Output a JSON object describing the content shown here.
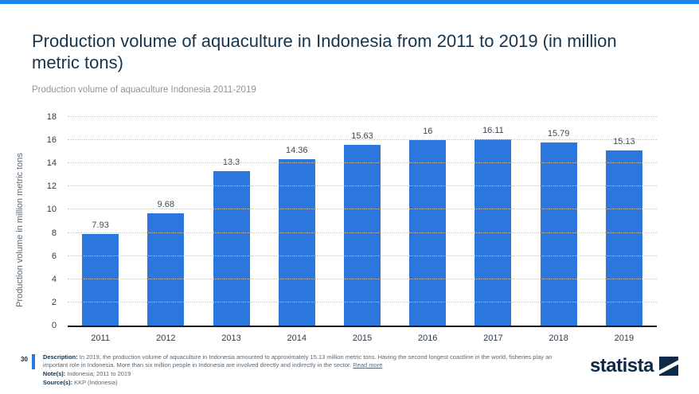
{
  "colors": {
    "accent_top": "#1e84e8",
    "bar": "#2b77dd",
    "footer_accent": "#2b77dd",
    "logo_navy": "#0e2a46"
  },
  "header": {
    "title": "Production volume of aquaculture in Indonesia from 2011 to 2019 (in million metric tons)",
    "subtitle": "Production volume of aquaculture Indonesia 2011-2019"
  },
  "chart_data": {
    "type": "bar",
    "title": "Production volume of aquaculture in Indonesia from 2011 to 2019 (in million metric tons)",
    "categories": [
      "2011",
      "2012",
      "2013",
      "2014",
      "2015",
      "2016",
      "2017",
      "2018",
      "2019"
    ],
    "values": [
      7.93,
      9.68,
      13.3,
      14.36,
      15.63,
      16,
      16.11,
      15.79,
      15.13
    ],
    "value_labels": [
      "7.93",
      "9.68",
      "13.3",
      "14.36",
      "15.63",
      "16",
      "16.11",
      "15.79",
      "15.13"
    ],
    "xlabel": "",
    "ylabel": "Production volume in million metric tons",
    "ylim": [
      0,
      18
    ],
    "ytick_step": 2,
    "grid": "horizontal-dotted",
    "legend": "none",
    "bar_color": "#2b77dd"
  },
  "footer": {
    "page_number": "30",
    "description_label": "Description:",
    "description_text": "In 2019, the production volume of aquaculture in Indonesia amounted to approximately 15.13 million metric tons. Having the second longest coastline in the world, fisheries play an important role in Indonesia. More than six million people in Indonesia are involved directly and indirectly in the sector.",
    "read_more": "Read more",
    "notes_label": "Note(s):",
    "notes_text": "Indonesia; 2011 to 2019",
    "sources_label": "Source(s):",
    "sources_text": "KKP (Indonesia)",
    "logo_text": "statista"
  }
}
